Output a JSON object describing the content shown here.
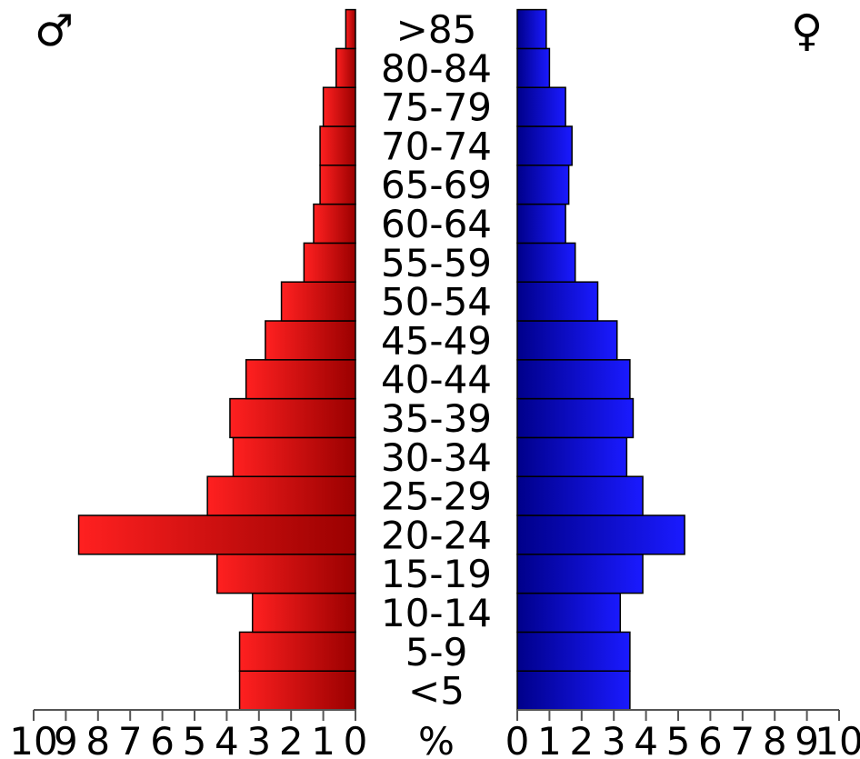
{
  "chart_data": {
    "type": "bar",
    "orientation": "horizontal-pyramid",
    "categories": [
      "<5",
      "5-9",
      "10-14",
      "15-19",
      "20-24",
      "25-29",
      "30-34",
      "35-39",
      "40-44",
      "45-49",
      "50-54",
      "55-59",
      "60-64",
      "65-69",
      "70-74",
      "75-79",
      "80-84",
      ">85"
    ],
    "series": [
      {
        "name": "♂",
        "color": "#e00000",
        "values": [
          3.6,
          3.6,
          3.2,
          4.3,
          8.6,
          4.6,
          3.8,
          3.9,
          3.4,
          2.8,
          2.3,
          1.6,
          1.3,
          1.1,
          1.1,
          1.0,
          0.6,
          0.3
        ]
      },
      {
        "name": "♀",
        "color": "#0000e0",
        "values": [
          3.5,
          3.5,
          3.2,
          3.9,
          5.2,
          3.9,
          3.4,
          3.6,
          3.5,
          3.1,
          2.5,
          1.8,
          1.5,
          1.6,
          1.7,
          1.5,
          1.0,
          0.9
        ]
      }
    ],
    "xlim": [
      0,
      10
    ],
    "xticks_left": [
      "10",
      "9",
      "8",
      "7",
      "6",
      "5",
      "4",
      "3",
      "2",
      "1",
      "0"
    ],
    "xticks_right": [
      "0",
      "1",
      "2",
      "3",
      "4",
      "5",
      "6",
      "7",
      "8",
      "9",
      "10"
    ],
    "xlabel": "%",
    "male_symbol": "♂",
    "female_symbol": "♀",
    "grid": false,
    "legend": "none"
  }
}
